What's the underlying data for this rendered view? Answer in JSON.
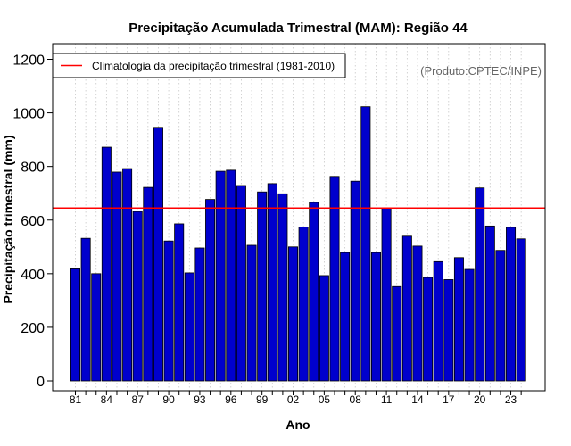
{
  "chart_data": {
    "type": "bar",
    "title": "Precipitação Acumulada Trimestral (MAM): Região 44",
    "xlabel": "Ano",
    "ylabel": "Precipitação trimestral (mm)",
    "credit": "(Produto:CPTEC/INPE)",
    "ylim": [
      0,
      1200
    ],
    "yticks": [
      0,
      200,
      400,
      600,
      800,
      1000,
      1200
    ],
    "categories": [
      "1981",
      "1982",
      "1983",
      "1984",
      "1985",
      "1986",
      "1987",
      "1988",
      "1989",
      "1990",
      "1991",
      "1992",
      "1993",
      "1994",
      "1995",
      "1996",
      "1997",
      "1998",
      "1999",
      "2000",
      "2001",
      "2002",
      "2003",
      "2004",
      "2005",
      "2006",
      "2007",
      "2008",
      "2009",
      "2010",
      "2011",
      "2012",
      "2013",
      "2014",
      "2015",
      "2016",
      "2017",
      "2018",
      "2019",
      "2020",
      "2021",
      "2022",
      "2023",
      "2024"
    ],
    "xtick_labels": [
      "81",
      "",
      "",
      "84",
      "",
      "",
      "87",
      "",
      "",
      "90",
      "",
      "",
      "93",
      "",
      "",
      "96",
      "",
      "",
      "99",
      "",
      "",
      "02",
      "",
      "",
      "05",
      "",
      "",
      "08",
      "",
      "",
      "11",
      "",
      "",
      "14",
      "",
      "",
      "17",
      "",
      "",
      "20",
      "",
      "",
      "23",
      ""
    ],
    "values": [
      418,
      532,
      400,
      872,
      779,
      792,
      632,
      722,
      946,
      522,
      586,
      403,
      496,
      677,
      782,
      786,
      729,
      506,
      705,
      736,
      698,
      500,
      574,
      666,
      393,
      763,
      479,
      745,
      1023,
      479,
      646,
      352,
      540,
      503,
      386,
      445,
      378,
      460,
      416,
      720,
      578,
      487,
      573,
      530
    ],
    "bar_color": "#0000CD",
    "climatology": {
      "value": 645,
      "label": "Climatologia da precipitação trimestral (1981-2010)",
      "color": "#FF0000"
    },
    "grid": "vertical dotted",
    "legend_position": "top-left"
  }
}
